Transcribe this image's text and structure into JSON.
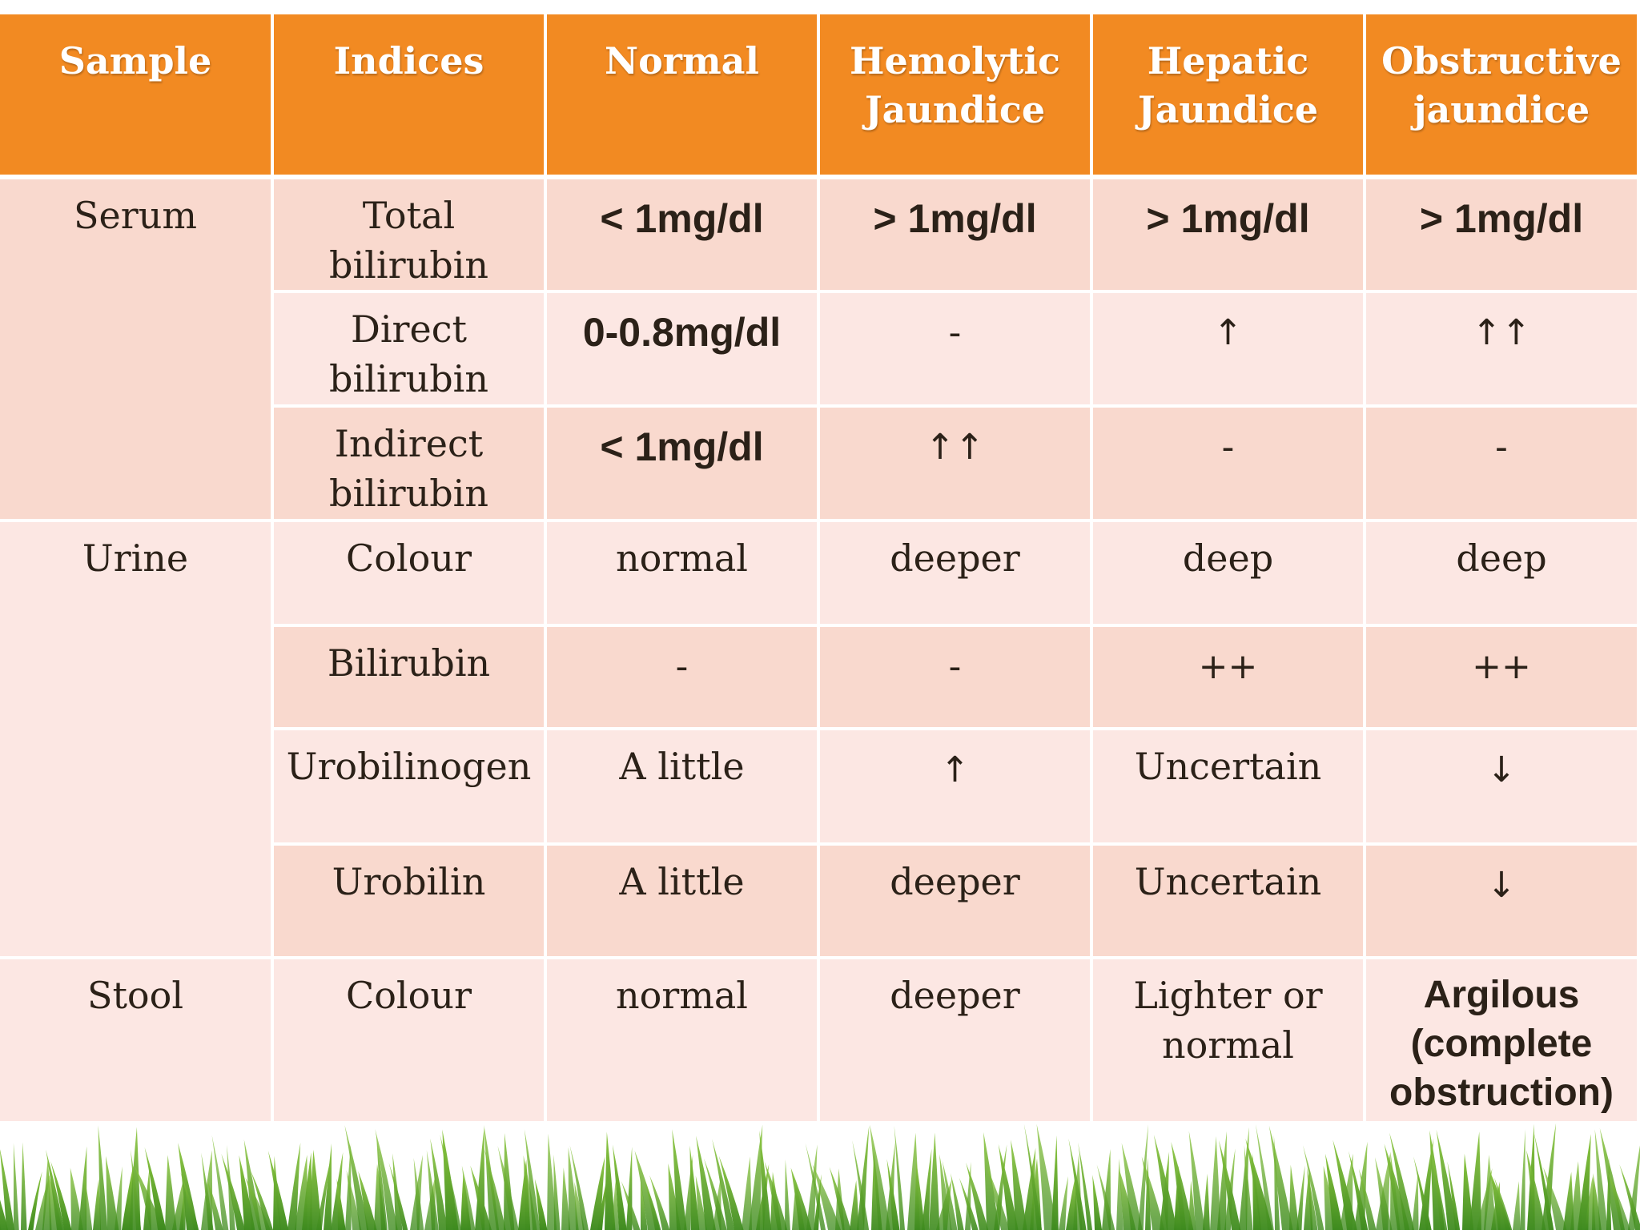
{
  "headers": [
    "Sample",
    "Indices",
    "Normal",
    "Hemolytic\nJaundice",
    "Hepatic\nJaundice",
    "Obstructive\njaundice"
  ],
  "rows": [
    {
      "sample": "Serum",
      "index": "Total\nbilirubin",
      "normal": "<  1mg/dl",
      "hemolytic": ">  1mg/dl",
      "hepatic": ">  1mg/dl",
      "obstructive": ">  1mg/dl"
    },
    {
      "sample": "",
      "index": "Direct\nbilirubin",
      "normal": "0-0.8mg/dl",
      "hemolytic": "-",
      "hepatic": "↑",
      "obstructive": "↑↑"
    },
    {
      "sample": "",
      "index": "Indirect\nbilirubin",
      "normal": "<  1mg/dl",
      "hemolytic": "↑↑",
      "hepatic": "-",
      "obstructive": "-"
    },
    {
      "sample": "Urine",
      "index": "Colour",
      "normal": "normal",
      "hemolytic": "deeper",
      "hepatic": "deep",
      "obstructive": "deep"
    },
    {
      "sample": "",
      "index": "Bilirubin",
      "normal": "-",
      "hemolytic": "-",
      "hepatic": "++",
      "obstructive": "++"
    },
    {
      "sample": "",
      "index": "Urobilinogen",
      "normal": "A little",
      "hemolytic": "↑",
      "hepatic": "Uncertain",
      "obstructive": "↓"
    },
    {
      "sample": "",
      "index": "Urobilin",
      "normal": "A little",
      "hemolytic": "deeper",
      "hepatic": "Uncertain",
      "obstructive": "↓"
    },
    {
      "sample": "Stool",
      "index": "Colour",
      "normal": "normal",
      "hemolytic": "deeper",
      "hepatic": "Lighter or\nnormal",
      "obstructive": "Argilous\n(complete\nobstruction)"
    }
  ],
  "colors": {
    "header": "#f28a22",
    "row_light": "#fce7e3",
    "row_dark": "#f9d9ce",
    "grass": "#5aa02c"
  }
}
